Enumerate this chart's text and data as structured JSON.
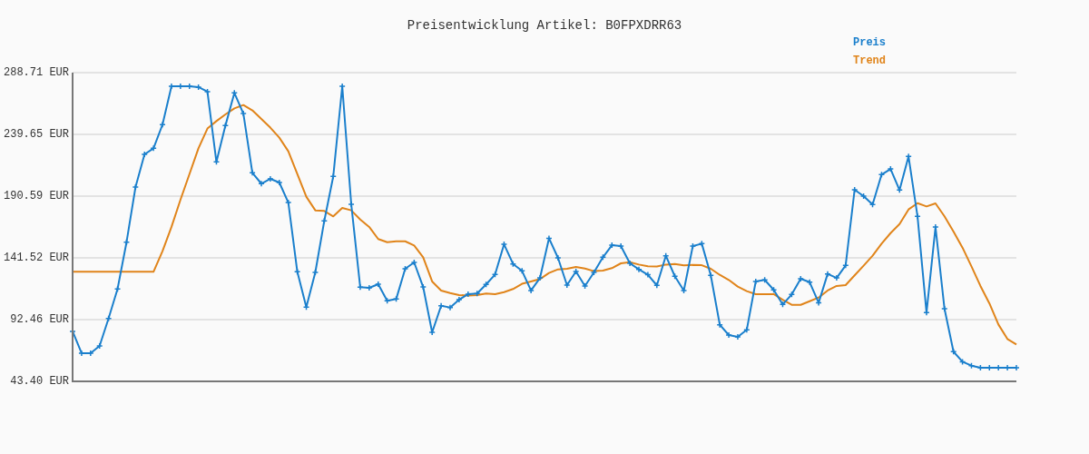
{
  "chart_data": {
    "type": "line",
    "title": "Preisentwicklung Artikel: B0FPXDRR63",
    "categories": [
      null,
      null,
      null,
      null,
      null,
      null,
      null,
      null,
      null,
      null,
      null,
      null,
      null,
      null,
      null,
      null,
      null,
      null,
      null,
      null,
      null,
      null,
      null,
      null,
      null,
      null,
      null,
      null,
      null,
      null,
      null,
      null,
      null,
      null,
      null,
      null,
      null,
      null,
      null,
      null,
      null,
      null,
      null,
      null,
      null,
      null,
      null,
      null,
      null,
      null,
      null,
      null,
      null,
      null,
      null,
      null,
      null,
      null,
      null,
      null,
      null,
      null,
      null,
      null,
      null,
      null,
      null,
      null,
      null,
      null,
      null,
      null,
      null,
      null,
      null,
      null,
      null,
      null,
      null,
      null,
      null,
      null,
      null,
      null,
      null,
      null,
      null,
      null,
      null,
      null,
      null,
      null,
      null,
      null,
      null,
      null,
      null,
      null,
      null,
      null,
      null,
      null,
      null,
      null,
      null,
      null
    ],
    "series": [
      {
        "name": "Preis",
        "color": "#1a7fcc",
        "marker": "cross",
        "values": [
          83.1,
          65.8,
          65.8,
          71.5,
          93.4,
          116.8,
          154.0,
          197.8,
          223.8,
          228.6,
          247.4,
          277.9,
          277.9,
          277.9,
          277.2,
          273.6,
          217.8,
          246.6,
          272.6,
          256.2,
          209.1,
          200.5,
          204.3,
          201.4,
          185.5,
          130.5,
          102.3,
          130.0,
          170.9,
          206.3,
          277.9,
          184.1,
          118.2,
          117.7,
          120.6,
          107.4,
          108.8,
          132.9,
          137.9,
          118.4,
          82.4,
          103.5,
          102.1,
          108.3,
          112.7,
          113.2,
          120.4,
          128.3,
          152.3,
          136.7,
          131.2,
          115.6,
          125.6,
          157.1,
          141.5,
          119.9,
          130.7,
          119.2,
          130.0,
          142.0,
          151.6,
          150.9,
          137.2,
          132.4,
          128.1,
          119.7,
          143.2,
          126.9,
          115.6,
          150.9,
          152.8,
          127.6,
          88.4,
          80.2,
          78.8,
          84.3,
          122.8,
          124.0,
          116.1,
          104.5,
          112.4,
          124.9,
          122.2,
          105.9,
          128.8,
          125.6,
          135.5,
          195.6,
          190.6,
          183.9,
          207.7,
          212.2,
          195.4,
          222.1,
          174.5,
          98.0,
          166.0,
          101.1,
          67.0,
          59.0,
          55.9,
          54.2,
          54.2,
          54.2,
          54.2,
          54.2
        ]
      },
      {
        "name": "Trend",
        "color": "#e0841a",
        "marker": "none",
        "values": [
          130.5,
          130.5,
          130.5,
          130.5,
          130.5,
          130.5,
          130.5,
          130.5,
          130.5,
          130.5,
          146.8,
          166.1,
          187.7,
          208.1,
          228.6,
          244.3,
          250.2,
          255.5,
          260.3,
          263.0,
          258.7,
          251.9,
          245.0,
          237.0,
          226.2,
          208.1,
          190.1,
          179.3,
          178.8,
          174.5,
          181.2,
          179.3,
          172.0,
          166.1,
          156.5,
          154.0,
          154.7,
          154.7,
          151.4,
          142.0,
          122.8,
          115.6,
          113.6,
          112.0,
          111.5,
          112.0,
          113.2,
          112.7,
          114.3,
          116.8,
          120.9,
          122.8,
          124.7,
          129.5,
          132.4,
          132.9,
          134.3,
          133.1,
          131.0,
          131.4,
          133.4,
          137.2,
          138.1,
          136.2,
          134.8,
          134.6,
          136.2,
          136.7,
          135.5,
          135.9,
          135.7,
          132.9,
          128.0,
          124.0,
          118.7,
          115.1,
          112.7,
          112.7,
          112.7,
          108.3,
          104.2,
          104.2,
          107.1,
          110.0,
          115.6,
          119.2,
          119.9,
          127.6,
          135.3,
          143.2,
          152.8,
          161.2,
          168.4,
          180.0,
          185.0,
          182.4,
          184.8,
          174.5,
          162.5,
          149.7,
          134.8,
          119.2,
          105.3,
          88.6,
          77.1,
          72.7
        ]
      }
    ],
    "ylim": [
      43.4,
      288.71
    ],
    "yticks": [
      {
        "value": 43.4,
        "label": "43.40 EUR"
      },
      {
        "value": 92.46,
        "label": "92.46 EUR"
      },
      {
        "value": 141.52,
        "label": "141.52 EUR"
      },
      {
        "value": 190.59,
        "label": "190.59 EUR"
      },
      {
        "value": 239.65,
        "label": "239.65 EUR"
      },
      {
        "value": 288.71,
        "label": "288.71 EUR"
      }
    ],
    "grid": "y",
    "legend": "top right",
    "tick_labels": "y",
    "line_style": "solid"
  }
}
